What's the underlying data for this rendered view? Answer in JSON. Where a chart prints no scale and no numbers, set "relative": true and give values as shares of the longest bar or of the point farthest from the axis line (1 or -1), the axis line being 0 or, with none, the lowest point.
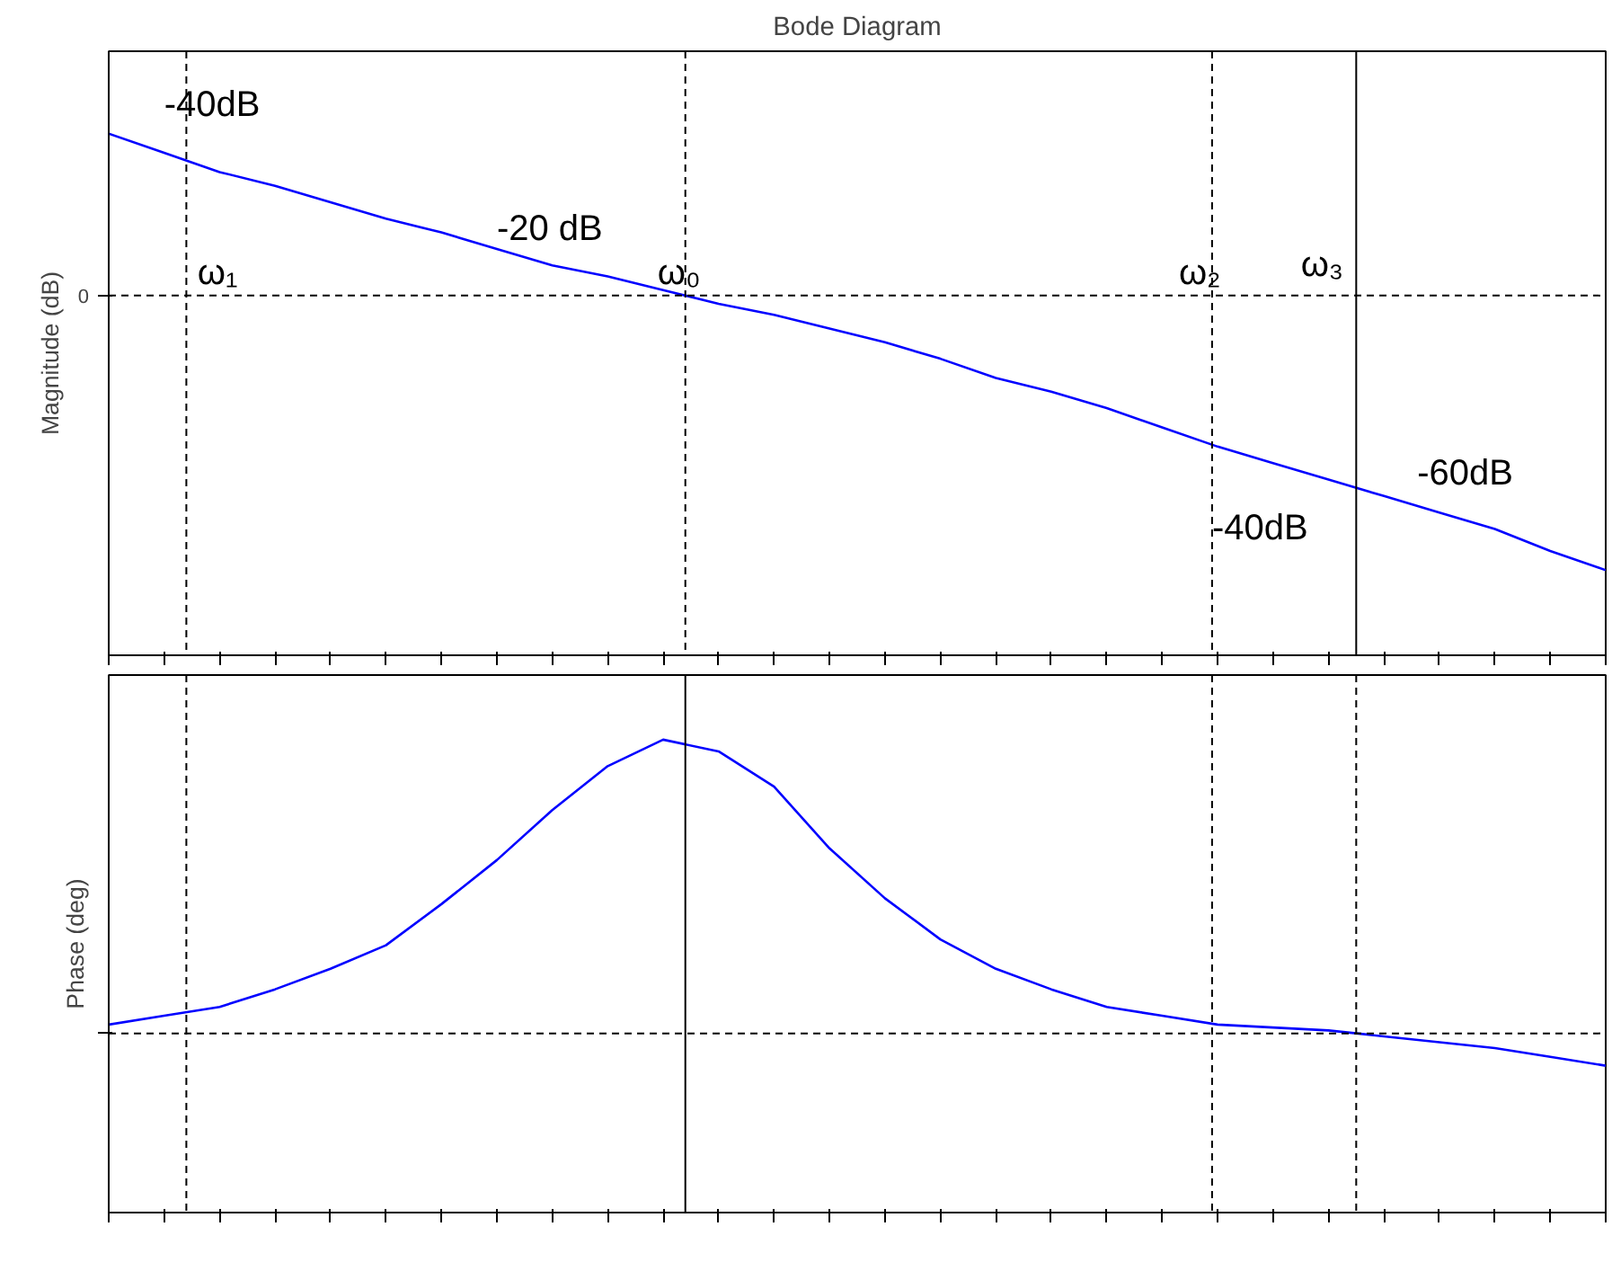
{
  "chart_data": [
    {
      "type": "line",
      "title": "Bode Diagram",
      "ylabel": "Magnitude (dB)",
      "relative": true,
      "categories": [
        null,
        null,
        null,
        null,
        null,
        null,
        null,
        null,
        null,
        null,
        null,
        null,
        null,
        null,
        null,
        null,
        null,
        null,
        null,
        null,
        null,
        null,
        null,
        null,
        null,
        null,
        null,
        null
      ],
      "series": [
        {
          "color": "#0000ff",
          "values": [
            0.59,
            0.52,
            0.45,
            0.4,
            0.34,
            0.28,
            0.23,
            0.17,
            0.11,
            0.07,
            0.02,
            -0.03,
            -0.07,
            -0.12,
            -0.17,
            -0.23,
            -0.3,
            -0.35,
            -0.41,
            -0.48,
            -0.55,
            -0.61,
            -0.67,
            -0.73,
            -0.79,
            -0.85,
            -0.93,
            -1
          ]
        }
      ],
      "ref_lines": [
        {
          "axis": "y",
          "value": 0,
          "label": "0",
          "line_style": "dashed",
          "color": "#000000"
        }
      ],
      "annotations": [
        "-40dB",
        "-20 dB",
        "ω₁",
        "ω₀",
        "ω₂",
        "ω₃",
        "-60dB",
        "-40dB"
      ],
      "grid": false
    },
    {
      "type": "line",
      "ylabel": "Phase (deg)",
      "relative": true,
      "categories": [
        null,
        null,
        null,
        null,
        null,
        null,
        null,
        null,
        null,
        null,
        null,
        null,
        null,
        null,
        null,
        null,
        null,
        null,
        null,
        null,
        null,
        null,
        null,
        null,
        null,
        null,
        null,
        null
      ],
      "series": [
        {
          "color": "#0000ff",
          "values": [
            0.03,
            0.06,
            0.09,
            0.15,
            0.22,
            0.3,
            0.44,
            0.59,
            0.76,
            0.91,
            1,
            0.96,
            0.84,
            0.63,
            0.46,
            0.32,
            0.22,
            0.15,
            0.09,
            0.06,
            0.03,
            0.02,
            0.01,
            -0.01,
            -0.03,
            -0.05,
            -0.08,
            -0.11
          ]
        }
      ],
      "ref_lines": [
        {
          "axis": "y",
          "value": 0,
          "line_style": "dashed",
          "color": "#000000"
        }
      ],
      "grid": false
    }
  ]
}
